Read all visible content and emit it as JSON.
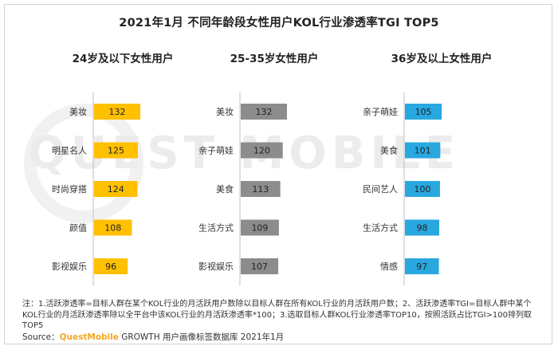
{
  "title": "2021年1月 不同年龄段女性用户KOL行业渗透率TGI TOP5",
  "watermark": "QUEST MOBILE",
  "chart_data": [
    {
      "type": "bar",
      "orientation": "horizontal",
      "title": "24岁及以下女性用户",
      "color": "#ffc000",
      "categories": [
        "美妆",
        "明星名人",
        "时尚穿搭",
        "颜值",
        "影视娱乐"
      ],
      "values": [
        132,
        125,
        124,
        108,
        96
      ]
    },
    {
      "type": "bar",
      "orientation": "horizontal",
      "title": "25-35岁女性用户",
      "color": "#8c8c8c",
      "categories": [
        "美妆",
        "亲子萌娃",
        "美食",
        "生活方式",
        "影视娱乐"
      ],
      "values": [
        132,
        120,
        113,
        109,
        107
      ]
    },
    {
      "type": "bar",
      "orientation": "horizontal",
      "title": "36岁及以上女性用户",
      "color": "#29a8e0",
      "categories": [
        "亲子萌娃",
        "美食",
        "民间艺人",
        "生活方式",
        "情感"
      ],
      "values": [
        105,
        101,
        100,
        98,
        97
      ]
    }
  ],
  "note": "注：1.活跃渗透率=目标人群在某个KOL行业的月活跃用户数除以目标人群在所有KOL行业的月活跃用户数；2、活跃渗透率TGI=目标人群中某个KOL行业的月活跃渗透率除以全平台中该KOL行业的月活跃渗透率*100；3.选取目标人群KOL行业渗透率TOP10，按照活跃占比TGI>100排列取TOP5",
  "source": {
    "prefix": "Source：",
    "brand": "QuestMobile",
    "suffix": " GROWTH 用户画像标签数据库 2021年1月"
  }
}
